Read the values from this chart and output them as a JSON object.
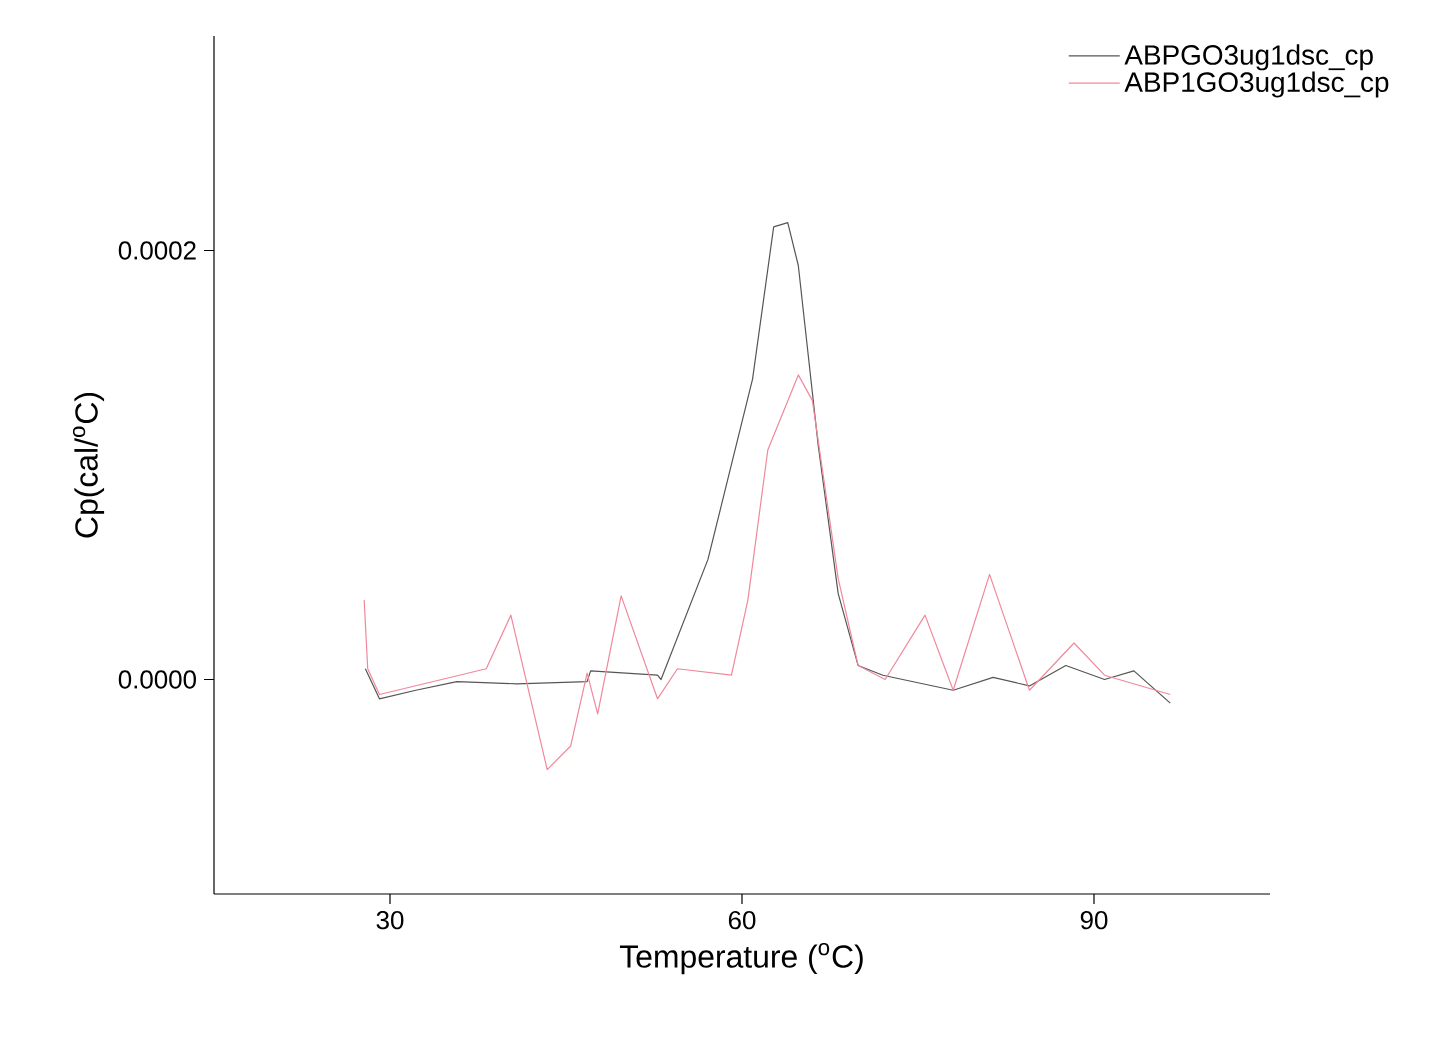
{
  "chart_data": {
    "type": "line",
    "xlabel": "Temperature ($^{o}$C)",
    "ylabel": "Cp(cal/$^{o}$C)",
    "xlim": [
      15,
      105
    ],
    "xticks": [
      30,
      60,
      90
    ],
    "ylim": [
      -0.0001,
      0.0003
    ],
    "yticks": [
      {
        "value": 0,
        "label": "0.0000"
      },
      {
        "value": 0.0002,
        "label": "0.0002"
      }
    ],
    "legend": "top right",
    "grid": false,
    "marker": "none",
    "line_style": "solid",
    "series": [
      {
        "name": "ABPGO3ug1dsc_cp",
        "color": "#555555",
        "x": [
          27.9,
          29.1,
          32.2,
          35.7,
          40.8,
          46.8,
          47.1,
          52.8,
          53.1,
          57.1,
          60.9,
          62.7,
          63.9,
          64.8,
          66.5,
          68.2,
          69.9,
          72.0,
          78.0,
          81.4,
          84.5,
          87.6,
          90.9,
          93.4,
          96.5
        ],
        "values": [
          5e-06,
          -9e-06,
          -5e-06,
          -1e-06,
          -2e-06,
          -1e-06,
          4e-06,
          2e-06,
          0.0,
          5.6e-05,
          0.00014,
          0.000211,
          0.000213,
          0.000193,
          0.000109,
          4e-05,
          6.5e-06,
          2e-06,
          -5e-06,
          1e-06,
          -3e-06,
          6.5e-06,
          0.0,
          4e-06,
          -1.1e-05
        ]
      },
      {
        "name": "ABP1GO3ug1dsc_cp",
        "color": "#f0889a",
        "x": [
          27.8,
          28.1,
          29.1,
          38.2,
          40.3,
          43.4,
          45.4,
          46.8,
          47.7,
          49.7,
          52.8,
          54.5,
          59.1,
          60.5,
          62.2,
          64.8,
          66.0,
          68.2,
          69.9,
          72.2,
          75.6,
          78.0,
          81.1,
          84.5,
          88.3,
          90.9,
          96.5
        ],
        "values": [
          3.7e-05,
          5e-06,
          -7e-06,
          5e-06,
          3e-05,
          -4.2e-05,
          -3.1e-05,
          3e-06,
          -1.6e-05,
          3.9e-05,
          -9e-06,
          5e-06,
          2e-06,
          3.7e-05,
          0.000107,
          0.000142,
          0.00013,
          4.7e-05,
          6.5e-06,
          0.0,
          3e-05,
          -5e-06,
          4.9e-05,
          -5e-06,
          1.7e-05,
          2e-06,
          -7e-06
        ]
      }
    ]
  }
}
